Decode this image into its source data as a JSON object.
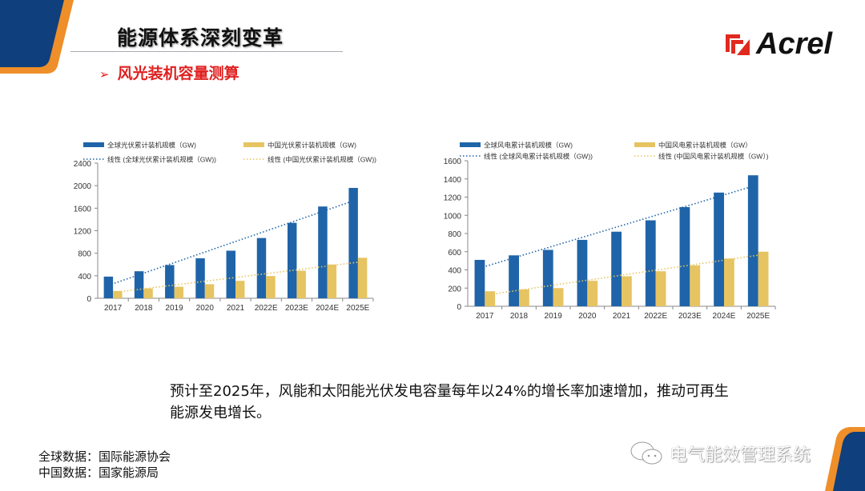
{
  "header": {
    "title": "能源体系深刻变革",
    "subtitle": "风光装机容量测算",
    "subtitle_bullet": "➢"
  },
  "logo": {
    "text": "Acrel",
    "color": "#e02a1f"
  },
  "colors": {
    "blue": "#1f64a8",
    "yellow": "#e6c462",
    "accent_red": "#e0201f",
    "navy": "#0f3f7c",
    "orange": "#ee8f2a"
  },
  "chart_data": [
    {
      "type": "bar",
      "title": "",
      "categories": [
        "2017",
        "2018",
        "2019",
        "2020",
        "2021",
        "2022E",
        "2023E",
        "2024E",
        "2025E"
      ],
      "ylim": [
        0,
        2400
      ],
      "yticks": [
        "0",
        "400",
        "800",
        "1200",
        "1600",
        "2000",
        "2400"
      ],
      "grid": false,
      "legend": "top",
      "series": [
        {
          "name": "全球光伏累计装机规模（GW)",
          "values": [
            385,
            480,
            590,
            710,
            845,
            1070,
            1340,
            1630,
            1960
          ],
          "color": "#1f64a8"
        },
        {
          "name": "中国光伏累计装机规模（GW)",
          "values": [
            130,
            175,
            205,
            250,
            310,
            395,
            490,
            600,
            720
          ],
          "color": "#e6c462"
        }
      ],
      "trendlines": [
        {
          "name": "线性 (全球光伏累计装机规模（GW))",
          "from": 230,
          "to": 1730,
          "color": "#1f64a8"
        },
        {
          "name": "线性 (中国光伏累计装机规模（GW))",
          "from": 110,
          "to": 650,
          "color": "#e6c462"
        }
      ]
    },
    {
      "type": "bar",
      "title": "",
      "categories": [
        "2017",
        "2018",
        "2019",
        "2020",
        "2021",
        "2022E",
        "2023E",
        "2024E",
        "2025E"
      ],
      "ylim": [
        0,
        1600
      ],
      "yticks": [
        "0",
        "200",
        "400",
        "600",
        "800",
        "1000",
        "1200",
        "1400",
        "1600"
      ],
      "grid": false,
      "legend": "top",
      "series": [
        {
          "name": "全球风电累计装机规模（GW)",
          "values": [
            510,
            560,
            620,
            730,
            820,
            945,
            1090,
            1250,
            1440
          ],
          "color": "#1f64a8"
        },
        {
          "name": "中国风电累计装机规模（GW）",
          "values": [
            165,
            185,
            200,
            280,
            330,
            385,
            450,
            525,
            600
          ],
          "color": "#e6c462"
        }
      ],
      "trendlines": [
        {
          "name": "线性 (全球风电累计装机规模（GW))",
          "from": 420,
          "to": 1320,
          "color": "#1f64a8"
        },
        {
          "name": "线性 (中国风电累计装机规模（GW）)",
          "from": 130,
          "to": 570,
          "color": "#e6c462"
        }
      ]
    }
  ],
  "summary": "预计至2025年，风能和太阳能光伏发电容量每年以24%的增长率加速增加，推动可再生能源发电增长。",
  "sources": {
    "global": "全球数据：国际能源协会",
    "china": "中国数据：国家能源局"
  },
  "watermark": {
    "text": "电气能效管理系统",
    "icon": "wechat-icon"
  }
}
